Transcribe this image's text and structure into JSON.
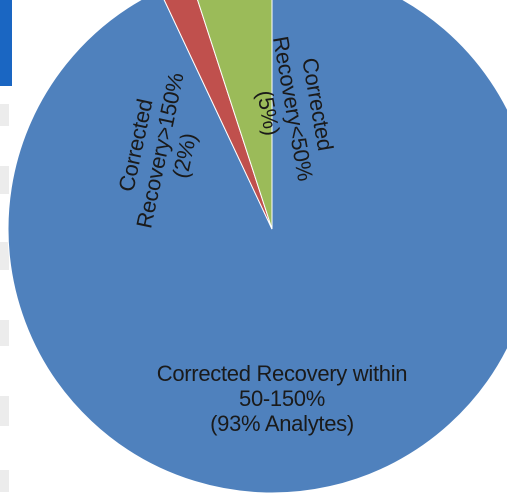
{
  "chart_data": {
    "type": "pie",
    "categories": [
      "Corrected Recovery within 50-150%",
      "Corrected Recovery>150%",
      "Corrected Recovery<50%"
    ],
    "values": [
      93,
      2,
      5
    ],
    "value_labels": [
      "(93% Analytes)",
      "(2%)",
      "(5%)"
    ],
    "colors": [
      "#4f81bd",
      "#c0504d",
      "#9bbb59"
    ]
  }
}
